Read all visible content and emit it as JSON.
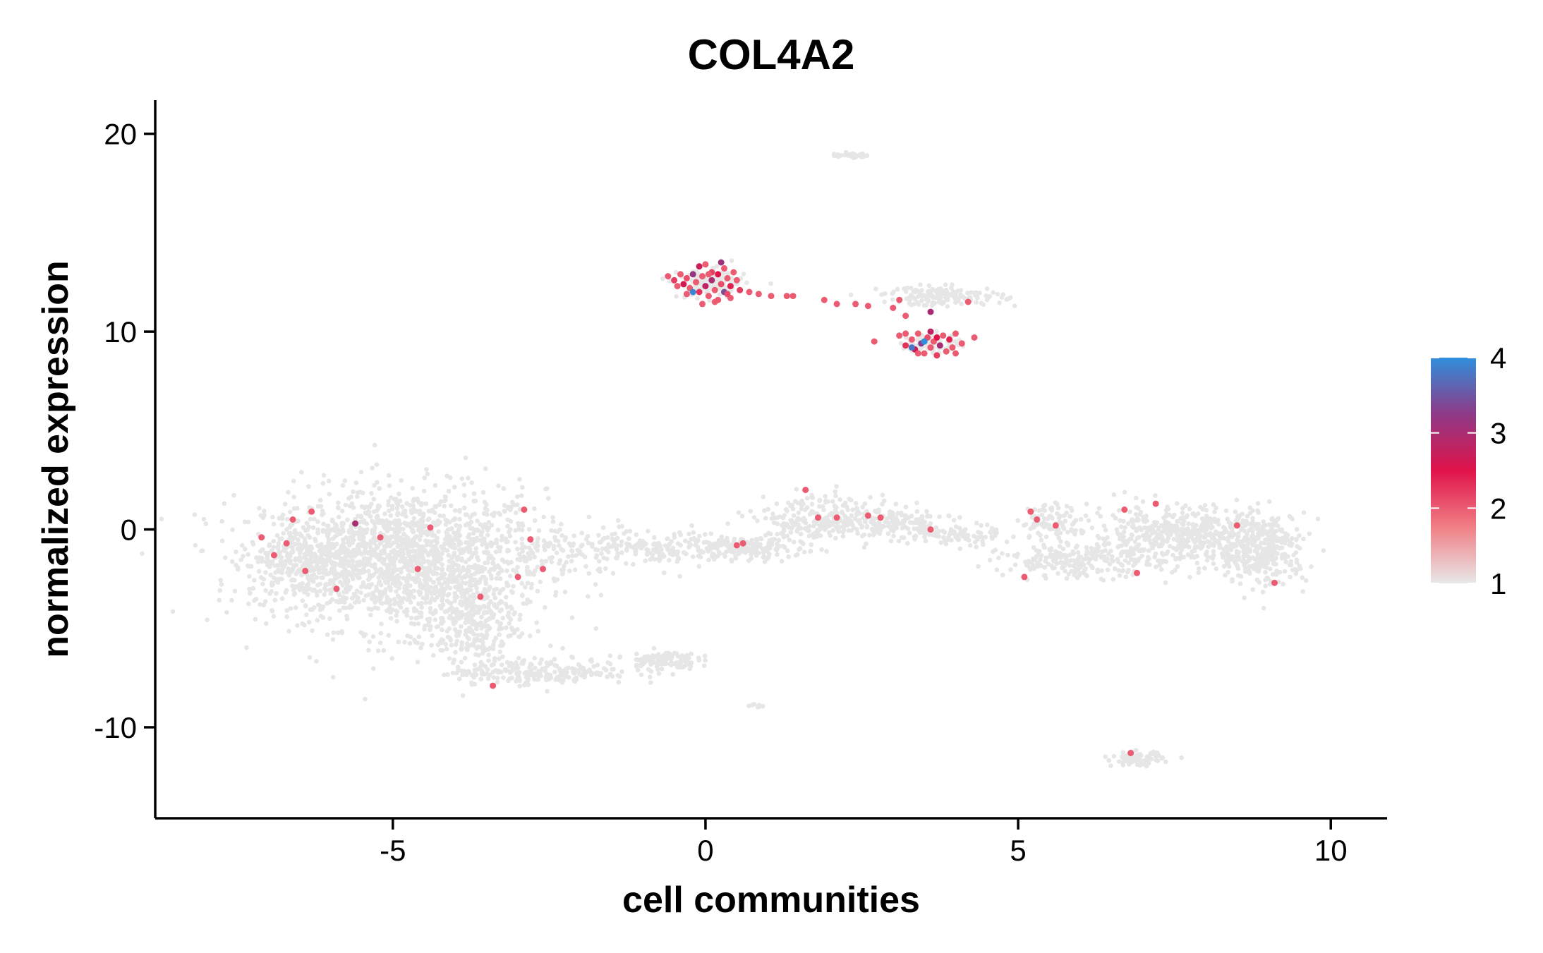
{
  "chart_data": {
    "type": "scatter",
    "title": "COL4A2",
    "xlabel": "cell communities",
    "ylabel": "normalized expression",
    "xlim": [
      -8.8,
      10.9
    ],
    "ylim": [
      -14.6,
      21.7
    ],
    "x_ticks": [
      -5,
      0,
      5,
      10
    ],
    "x_tick_labels": [
      "-5",
      "0",
      "5",
      "10"
    ],
    "y_ticks": [
      -10,
      0,
      10,
      20
    ],
    "y_tick_labels": [
      "-10",
      "0",
      "10",
      "20"
    ],
    "grid": false,
    "colorbar": {
      "placement": "right",
      "min": 1,
      "max": 4,
      "ticks": [
        1,
        2,
        3,
        4
      ],
      "tick_labels": [
        "1",
        "2",
        "3",
        "4"
      ],
      "colors": [
        "#e8e8e8",
        "#f07f85",
        "#e0134a",
        "#8e3a86",
        "#2f8fdc"
      ]
    },
    "background_color": "#e6e6e6",
    "clusters": [
      {
        "cx": -4.8,
        "cy": -1.5,
        "sx": 1.4,
        "sy": 2.2,
        "points": 1700
      },
      {
        "cx": -6.4,
        "cy": -1.5,
        "sx": 0.6,
        "sy": 1.2,
        "points": 300
      },
      {
        "cx": -3.8,
        "cy": -4.6,
        "sx": 0.5,
        "sy": 1.6,
        "points": 300
      },
      {
        "cx": -2.6,
        "cy": -7.2,
        "sx": 0.9,
        "sy": 0.4,
        "points": 220
      },
      {
        "cx": -0.7,
        "cy": -6.6,
        "sx": 0.35,
        "sy": 0.3,
        "points": 110
      },
      {
        "cx": -1.0,
        "cy": -1.0,
        "sx": 1.2,
        "sy": 0.55,
        "points": 260
      },
      {
        "cx": 0.6,
        "cy": -0.9,
        "sx": 0.6,
        "sy": 0.4,
        "points": 130
      },
      {
        "cx": 1.7,
        "cy": 0.4,
        "sx": 0.6,
        "sy": 0.8,
        "points": 200
      },
      {
        "cx": 2.8,
        "cy": 0.4,
        "sx": 0.7,
        "sy": 0.5,
        "points": 190
      },
      {
        "cx": 3.9,
        "cy": -0.3,
        "sx": 0.5,
        "sy": 0.35,
        "points": 90
      },
      {
        "cx": 6.0,
        "cy": -1.6,
        "sx": 0.8,
        "sy": 0.5,
        "points": 220
      },
      {
        "cx": 5.6,
        "cy": 0.4,
        "sx": 0.35,
        "sy": 0.6,
        "points": 90
      },
      {
        "cx": 7.6,
        "cy": -0.3,
        "sx": 0.9,
        "sy": 0.9,
        "points": 520
      },
      {
        "cx": 8.9,
        "cy": -1.0,
        "sx": 0.45,
        "sy": 1.1,
        "points": 340
      },
      {
        "cx": 6.9,
        "cy": -11.6,
        "sx": 0.25,
        "sy": 0.22,
        "points": 80
      },
      {
        "cx": 0.8,
        "cy": -8.9,
        "sx": 0.08,
        "sy": 0.06,
        "points": 8
      },
      {
        "cx": 2.3,
        "cy": 18.9,
        "sx": 0.22,
        "sy": 0.07,
        "points": 35
      },
      {
        "cx": 0.1,
        "cy": 12.4,
        "sx": 0.33,
        "sy": 0.45,
        "points": 130
      },
      {
        "cx": 3.8,
        "cy": 11.8,
        "sx": 0.6,
        "sy": 0.3,
        "points": 150
      },
      {
        "cx": 3.6,
        "cy": 9.4,
        "sx": 0.3,
        "sy": 0.3,
        "points": 90
      }
    ],
    "expressing_points": [
      {
        "x": -0.6,
        "y": 12.8,
        "v": 2.0
      },
      {
        "x": -0.5,
        "y": 12.6,
        "v": 2.2
      },
      {
        "x": -0.4,
        "y": 12.9,
        "v": 2.0
      },
      {
        "x": -0.35,
        "y": 12.4,
        "v": 2.6
      },
      {
        "x": -0.3,
        "y": 12.7,
        "v": 2.1
      },
      {
        "x": -0.25,
        "y": 12.2,
        "v": 2.0
      },
      {
        "x": -0.2,
        "y": 12.9,
        "v": 3.2
      },
      {
        "x": -0.15,
        "y": 12.5,
        "v": 2.0
      },
      {
        "x": -0.1,
        "y": 12.0,
        "v": 2.3
      },
      {
        "x": -0.05,
        "y": 12.8,
        "v": 2.0
      },
      {
        "x": 0.0,
        "y": 12.3,
        "v": 2.8
      },
      {
        "x": 0.0,
        "y": 13.4,
        "v": 2.0
      },
      {
        "x": 0.05,
        "y": 11.8,
        "v": 2.0
      },
      {
        "x": 0.1,
        "y": 12.6,
        "v": 3.0
      },
      {
        "x": 0.1,
        "y": 13.0,
        "v": 2.2
      },
      {
        "x": 0.15,
        "y": 12.1,
        "v": 2.0
      },
      {
        "x": 0.2,
        "y": 12.9,
        "v": 2.5
      },
      {
        "x": 0.2,
        "y": 11.6,
        "v": 2.0
      },
      {
        "x": 0.25,
        "y": 12.4,
        "v": 2.1
      },
      {
        "x": 0.3,
        "y": 13.2,
        "v": 2.0
      },
      {
        "x": 0.3,
        "y": 12.0,
        "v": 3.4
      },
      {
        "x": 0.35,
        "y": 12.7,
        "v": 2.0
      },
      {
        "x": 0.4,
        "y": 12.3,
        "v": 2.4
      },
      {
        "x": 0.45,
        "y": 13.0,
        "v": 2.0
      },
      {
        "x": 0.5,
        "y": 12.6,
        "v": 2.0
      },
      {
        "x": 0.55,
        "y": 12.1,
        "v": 2.2
      },
      {
        "x": -0.45,
        "y": 12.3,
        "v": 2.0
      },
      {
        "x": -0.3,
        "y": 11.9,
        "v": 2.0
      },
      {
        "x": -0.1,
        "y": 13.3,
        "v": 2.7
      },
      {
        "x": 0.15,
        "y": 11.5,
        "v": 2.0
      },
      {
        "x": 0.4,
        "y": 11.7,
        "v": 2.0
      },
      {
        "x": -0.05,
        "y": 11.4,
        "v": 2.0
      },
      {
        "x": 0.25,
        "y": 13.5,
        "v": 3.1
      },
      {
        "x": -0.2,
        "y": 12.0,
        "v": 3.9
      },
      {
        "x": 0.05,
        "y": 12.9,
        "v": 2.0
      },
      {
        "x": 0.35,
        "y": 11.9,
        "v": 2.1
      },
      {
        "x": 0.7,
        "y": 12.0,
        "v": 2.0
      },
      {
        "x": 0.85,
        "y": 11.9,
        "v": 2.0
      },
      {
        "x": 1.05,
        "y": 11.8,
        "v": 2.0
      },
      {
        "x": 1.3,
        "y": 11.8,
        "v": 2.0
      },
      {
        "x": 1.4,
        "y": 11.8,
        "v": 2.0
      },
      {
        "x": 1.9,
        "y": 11.6,
        "v": 2.0
      },
      {
        "x": 2.1,
        "y": 11.4,
        "v": 2.0
      },
      {
        "x": 2.4,
        "y": 11.4,
        "v": 2.0
      },
      {
        "x": 2.6,
        "y": 11.3,
        "v": 2.0
      },
      {
        "x": 3.0,
        "y": 11.2,
        "v": 2.0
      },
      {
        "x": 3.1,
        "y": 11.6,
        "v": 2.0
      },
      {
        "x": 3.2,
        "y": 10.8,
        "v": 2.0
      },
      {
        "x": 3.6,
        "y": 11.0,
        "v": 3.0
      },
      {
        "x": 4.2,
        "y": 11.5,
        "v": 2.0
      },
      {
        "x": 2.7,
        "y": 9.5,
        "v": 2.0
      },
      {
        "x": 3.1,
        "y": 9.8,
        "v": 2.0
      },
      {
        "x": 3.2,
        "y": 9.3,
        "v": 2.3
      },
      {
        "x": 3.3,
        "y": 9.6,
        "v": 2.0
      },
      {
        "x": 3.35,
        "y": 9.1,
        "v": 2.6
      },
      {
        "x": 3.4,
        "y": 9.9,
        "v": 2.0
      },
      {
        "x": 3.45,
        "y": 9.4,
        "v": 3.3
      },
      {
        "x": 3.5,
        "y": 8.9,
        "v": 2.0
      },
      {
        "x": 3.55,
        "y": 9.7,
        "v": 2.1
      },
      {
        "x": 3.6,
        "y": 9.2,
        "v": 2.0
      },
      {
        "x": 3.6,
        "y": 10.0,
        "v": 2.8
      },
      {
        "x": 3.65,
        "y": 9.5,
        "v": 2.0
      },
      {
        "x": 3.7,
        "y": 8.8,
        "v": 2.2
      },
      {
        "x": 3.75,
        "y": 9.3,
        "v": 3.0
      },
      {
        "x": 3.8,
        "y": 9.8,
        "v": 2.0
      },
      {
        "x": 3.85,
        "y": 9.0,
        "v": 2.0
      },
      {
        "x": 3.9,
        "y": 9.6,
        "v": 2.4
      },
      {
        "x": 3.95,
        "y": 9.2,
        "v": 2.0
      },
      {
        "x": 4.0,
        "y": 9.9,
        "v": 2.0
      },
      {
        "x": 4.1,
        "y": 9.4,
        "v": 2.0
      },
      {
        "x": 4.3,
        "y": 9.7,
        "v": 2.0
      },
      {
        "x": 3.3,
        "y": 9.2,
        "v": 3.8
      },
      {
        "x": 3.5,
        "y": 9.5,
        "v": 4.0
      },
      {
        "x": 3.4,
        "y": 8.9,
        "v": 2.0
      },
      {
        "x": 3.7,
        "y": 9.7,
        "v": 2.5
      },
      {
        "x": 3.2,
        "y": 9.9,
        "v": 2.0
      },
      {
        "x": 4.0,
        "y": 8.9,
        "v": 2.0
      },
      {
        "x": -6.6,
        "y": 0.5,
        "v": 2.0
      },
      {
        "x": -6.3,
        "y": 0.9,
        "v": 2.0
      },
      {
        "x": -7.1,
        "y": -0.4,
        "v": 2.0
      },
      {
        "x": -6.9,
        "y": -1.3,
        "v": 2.0
      },
      {
        "x": -6.7,
        "y": -0.7,
        "v": 2.0
      },
      {
        "x": -6.4,
        "y": -2.1,
        "v": 2.0
      },
      {
        "x": -5.6,
        "y": 0.3,
        "v": 3.0
      },
      {
        "x": -5.2,
        "y": -0.4,
        "v": 2.0
      },
      {
        "x": -4.6,
        "y": -2.0,
        "v": 2.0
      },
      {
        "x": -4.4,
        "y": 0.1,
        "v": 2.0
      },
      {
        "x": -3.6,
        "y": -3.4,
        "v": 2.0
      },
      {
        "x": -3.0,
        "y": -2.4,
        "v": 2.0
      },
      {
        "x": -2.8,
        "y": -0.5,
        "v": 2.0
      },
      {
        "x": -2.6,
        "y": -2.0,
        "v": 2.0
      },
      {
        "x": -2.9,
        "y": 1.0,
        "v": 2.0
      },
      {
        "x": -3.4,
        "y": -7.9,
        "v": 2.0
      },
      {
        "x": -5.9,
        "y": -3.0,
        "v": 2.0
      },
      {
        "x": 0.5,
        "y": -0.8,
        "v": 2.0
      },
      {
        "x": 0.6,
        "y": -0.7,
        "v": 2.0
      },
      {
        "x": 1.6,
        "y": 2.0,
        "v": 2.0
      },
      {
        "x": 1.8,
        "y": 0.6,
        "v": 2.0
      },
      {
        "x": 2.1,
        "y": 0.6,
        "v": 2.0
      },
      {
        "x": 2.6,
        "y": 0.7,
        "v": 2.0
      },
      {
        "x": 2.8,
        "y": 0.6,
        "v": 2.0
      },
      {
        "x": 3.6,
        "y": 0.0,
        "v": 2.0
      },
      {
        "x": 5.2,
        "y": 0.9,
        "v": 2.0
      },
      {
        "x": 5.3,
        "y": 0.5,
        "v": 2.0
      },
      {
        "x": 5.6,
        "y": 0.2,
        "v": 2.0
      },
      {
        "x": 5.1,
        "y": -2.4,
        "v": 2.0
      },
      {
        "x": 6.7,
        "y": 1.0,
        "v": 2.0
      },
      {
        "x": 7.2,
        "y": 1.3,
        "v": 2.0
      },
      {
        "x": 6.9,
        "y": -2.2,
        "v": 2.0
      },
      {
        "x": 8.5,
        "y": 0.2,
        "v": 2.0
      },
      {
        "x": 9.1,
        "y": -2.7,
        "v": 2.0
      },
      {
        "x": 6.8,
        "y": -11.3,
        "v": 2.0
      }
    ]
  }
}
